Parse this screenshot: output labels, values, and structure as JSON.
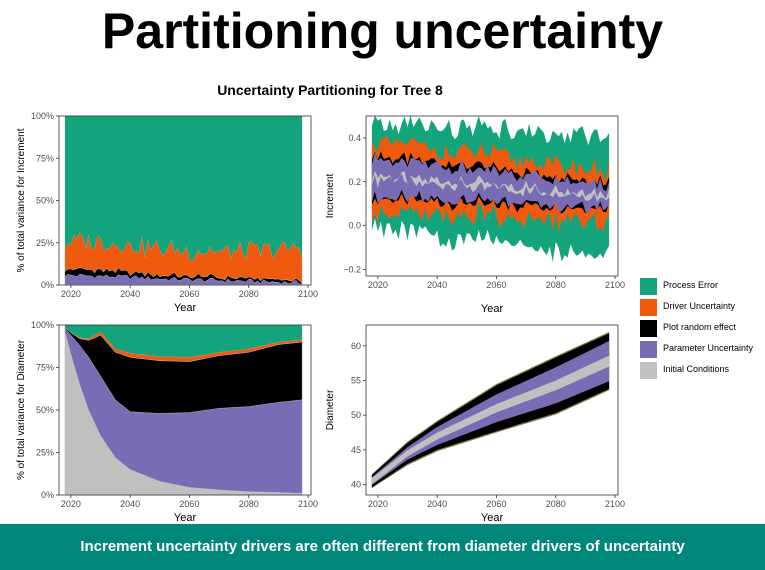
{
  "slide": {
    "title": "Partitioning uncertainty",
    "figure_title": "Uncertainty Partitioning for Tree  8",
    "footer": "Increment uncertainty drivers are often different from diameter drivers of uncertainty"
  },
  "legend": [
    {
      "label": "Process Error",
      "color": "#13a47c"
    },
    {
      "label": "Driver Uncertainty",
      "color": "#f05a0e"
    },
    {
      "label": "Plot random effect",
      "color": "#000000"
    },
    {
      "label": "Parameter Uncertainty",
      "color": "#7a6bb5"
    },
    {
      "label": "Initial Conditions",
      "color": "#c0c0c0"
    }
  ],
  "chart_data": [
    {
      "type": "area",
      "stacked": true,
      "xlabel": "Year",
      "ylabel": "% of total variance for  Increment",
      "xlim": [
        2016,
        2101
      ],
      "ylim": [
        0,
        100
      ],
      "xticks": [
        2020,
        2040,
        2060,
        2080,
        2100
      ],
      "yticks": [
        0,
        25,
        50,
        75,
        100
      ],
      "yticklabels": [
        "0%",
        "25%",
        "50%",
        "75%",
        "100%"
      ],
      "x": [
        2018,
        2028,
        2038,
        2048,
        2058,
        2068,
        2078,
        2088,
        2098
      ],
      "series": [
        {
          "name": "Initial Conditions",
          "color": "#c0c0c0",
          "values": [
            0.3,
            0.3,
            0.3,
            0.3,
            0.3,
            0.3,
            0.3,
            0.3,
            0.3
          ]
        },
        {
          "name": "Parameter Uncertainty",
          "color": "#7a6bb5",
          "values": [
            5.5,
            5,
            4.5,
            3.5,
            3,
            2.5,
            2,
            1.5,
            1
          ]
        },
        {
          "name": "Plot random effect",
          "color": "#000000",
          "values": [
            4,
            3.5,
            3,
            2.5,
            2,
            2,
            1.5,
            1.5,
            1
          ]
        },
        {
          "name": "Driver Uncertainty",
          "color": "#f05a0e",
          "values": [
            16,
            17,
            16,
            16,
            15,
            15,
            16,
            17,
            20
          ]
        },
        {
          "name": "Process Error",
          "color": "#13a47c",
          "values": [
            74.2,
            74.2,
            76.2,
            77.7,
            79.7,
            80.2,
            80.2,
            79.7,
            77.7
          ]
        }
      ]
    },
    {
      "type": "area",
      "stacked": false,
      "xlabel": "Year",
      "ylabel": "Increment",
      "xlim": [
        2016,
        2101
      ],
      "ylim": [
        -0.23,
        0.5
      ],
      "xticks": [
        2020,
        2040,
        2060,
        2080,
        2100
      ],
      "yticks": [
        -0.2,
        0.0,
        0.2,
        0.4
      ],
      "yticklabels": [
        "−0.2",
        "0.0",
        "0.2",
        "0.4"
      ],
      "x": [
        2018,
        2098
      ],
      "center": [
        0.22,
        0.14
      ],
      "band_halfwidths": [
        {
          "name": "Process Error",
          "color": "#13a47c",
          "values": [
            0.24,
            0.27
          ]
        },
        {
          "name": "Driver Uncertainty",
          "color": "#f05a0e",
          "values": [
            0.16,
            0.12
          ]
        },
        {
          "name": "Plot random effect",
          "color": "#000000",
          "values": [
            0.105,
            0.06
          ]
        },
        {
          "name": "Parameter Uncertainty",
          "color": "#7a6bb5",
          "values": [
            0.09,
            0.05
          ]
        },
        {
          "name": "Initial Conditions",
          "color": "#c0c0c0",
          "values": [
            0.01,
            0.01
          ]
        }
      ]
    },
    {
      "type": "area",
      "stacked": true,
      "xlabel": "Year",
      "ylabel": "% of total variance for  Diameter",
      "xlim": [
        2016,
        2101
      ],
      "ylim": [
        0,
        100
      ],
      "xticks": [
        2020,
        2040,
        2060,
        2080,
        2100
      ],
      "yticks": [
        0,
        25,
        50,
        75,
        100
      ],
      "yticklabels": [
        "0%",
        "25%",
        "50%",
        "75%",
        "100%"
      ],
      "x": [
        2018,
        2020,
        2023,
        2026,
        2030,
        2035,
        2040,
        2050,
        2060,
        2070,
        2080,
        2090,
        2098
      ],
      "series": [
        {
          "name": "Initial Conditions",
          "color": "#c0c0c0",
          "values": [
            96,
            83,
            65,
            50,
            35,
            22,
            15,
            8,
            4.5,
            3,
            2,
            1.5,
            1
          ]
        },
        {
          "name": "Parameter Uncertainty",
          "color": "#7a6bb5",
          "values": [
            2,
            11,
            23,
            31,
            35,
            34,
            34,
            40,
            44,
            48,
            50,
            53,
            55
          ]
        },
        {
          "name": "Plot random effect",
          "color": "#000000",
          "values": [
            0.5,
            1.5,
            4,
            10,
            24,
            28,
            32,
            31,
            30,
            31,
            32,
            34,
            34
          ]
        },
        {
          "name": "Driver Uncertainty",
          "color": "#f05a0e",
          "values": [
            0.2,
            0.3,
            0.5,
            1,
            2,
            2,
            2.5,
            2.5,
            2.5,
            2,
            2,
            1.5,
            1.5
          ]
        },
        {
          "name": "Process Error",
          "color": "#13a47c",
          "values": [
            1.3,
            4.2,
            7.5,
            8,
            4,
            14,
            16.5,
            18.5,
            19,
            16,
            14,
            10,
            8.5
          ]
        }
      ]
    },
    {
      "type": "area",
      "stacked": false,
      "xlabel": "Year",
      "ylabel": "Diameter",
      "xlim": [
        2016,
        2101
      ],
      "ylim": [
        38.5,
        63
      ],
      "xticks": [
        2020,
        2040,
        2060,
        2080,
        2100
      ],
      "yticks": [
        40,
        45,
        50,
        55,
        60
      ],
      "yticklabels": [
        "40",
        "45",
        "50",
        "55",
        "60"
      ],
      "x": [
        2018,
        2030,
        2040,
        2060,
        2080,
        2098
      ],
      "center": [
        40.5,
        44.5,
        47,
        51,
        54.3,
        57.8
      ],
      "band_halfwidths": [
        {
          "name": "Process Error",
          "color": "#13a47c",
          "values": [
            1.0,
            1.7,
            2.2,
            3.5,
            4.2,
            4.2
          ]
        },
        {
          "name": "Driver Uncertainty",
          "color": "#f05a0e",
          "values": [
            0.95,
            1.6,
            2.1,
            3.4,
            4.1,
            4.1
          ]
        },
        {
          "name": "Plot random effect",
          "color": "#000000",
          "values": [
            0.9,
            1.5,
            2.0,
            3.3,
            4.0,
            4.0
          ]
        },
        {
          "name": "Parameter Uncertainty",
          "color": "#7a6bb5",
          "values": [
            0.55,
            0.9,
            1.3,
            2.0,
            2.6,
            2.9
          ]
        },
        {
          "name": "Initial Conditions",
          "color": "#c0c0c0",
          "values": [
            0.45,
            0.45,
            0.5,
            0.6,
            0.7,
            0.8
          ]
        }
      ]
    }
  ]
}
